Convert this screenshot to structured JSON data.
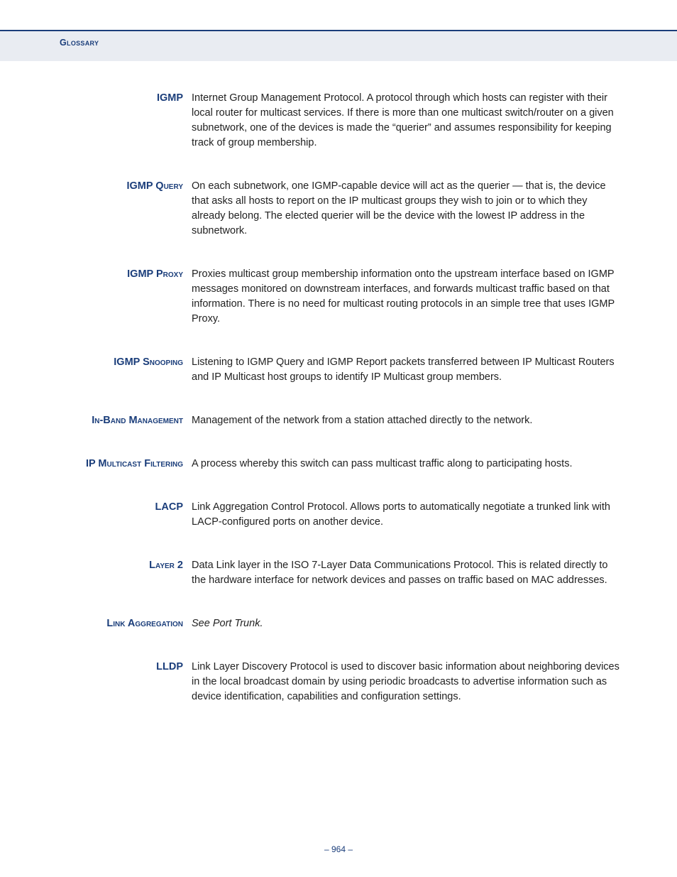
{
  "header": {
    "section_label": "Glossary"
  },
  "colors": {
    "accent": "#1a3d7a",
    "band_bg": "#e9ecf2",
    "body_text": "#222222",
    "page_bg": "#ffffff"
  },
  "typography": {
    "body_family": "Verdana, Geneva, sans-serif",
    "body_size_pt": 11,
    "term_weight": "bold",
    "line_height": 1.45
  },
  "entries": [
    {
      "term": "IGMP",
      "small_caps": false,
      "definition": "Internet Group Management Protocol. A protocol through which hosts can register with their local router for multicast services. If there is more than one multicast switch/router on a given subnetwork, one of the devices is made the “querier” and assumes responsibility for keeping track of group membership."
    },
    {
      "term": "IGMP Query",
      "small_caps": true,
      "definition": "On each subnetwork, one IGMP-capable device will act as the querier — that is, the device that asks all hosts to report on the IP multicast groups they wish to join or to which they already belong. The elected querier will be the device with the lowest IP address in the subnetwork."
    },
    {
      "term": "IGMP Proxy",
      "small_caps": true,
      "definition": "Proxies multicast group membership information onto the upstream interface based on IGMP messages monitored on downstream interfaces, and forwards multicast traffic based on that information. There is no need for multicast routing protocols in an simple tree that uses IGMP Proxy."
    },
    {
      "term": "IGMP Snooping",
      "small_caps": true,
      "definition": "Listening to IGMP Query and IGMP Report packets transferred between IP Multicast Routers and IP Multicast host groups to identify IP Multicast group members."
    },
    {
      "term": "In-Band Management",
      "small_caps": true,
      "definition": "Management of the network from a station attached directly to the network."
    },
    {
      "term": "IP Multicast Filtering",
      "small_caps": true,
      "definition": "A process whereby this switch can pass multicast traffic along to participating hosts."
    },
    {
      "term": "LACP",
      "small_caps": false,
      "definition": "Link Aggregation Control Protocol. Allows ports to automatically negotiate a trunked link with LACP-configured ports on another device."
    },
    {
      "term": "Layer 2",
      "small_caps": true,
      "definition": "Data Link layer in the ISO 7-Layer Data Communications Protocol. This is related directly to the hardware interface for network devices and passes on traffic based on MAC addresses."
    },
    {
      "term": "Link Aggregation",
      "small_caps": true,
      "definition_italic": true,
      "definition": "See Port Trunk."
    },
    {
      "term": "LLDP",
      "small_caps": false,
      "definition": "Link Layer Discovery Protocol is used to discover basic information about neighboring devices in the local broadcast domain by using periodic broadcasts to advertise information such as device identification, capabilities and configuration settings."
    }
  ],
  "footer": {
    "page_number": "–  964  –"
  }
}
